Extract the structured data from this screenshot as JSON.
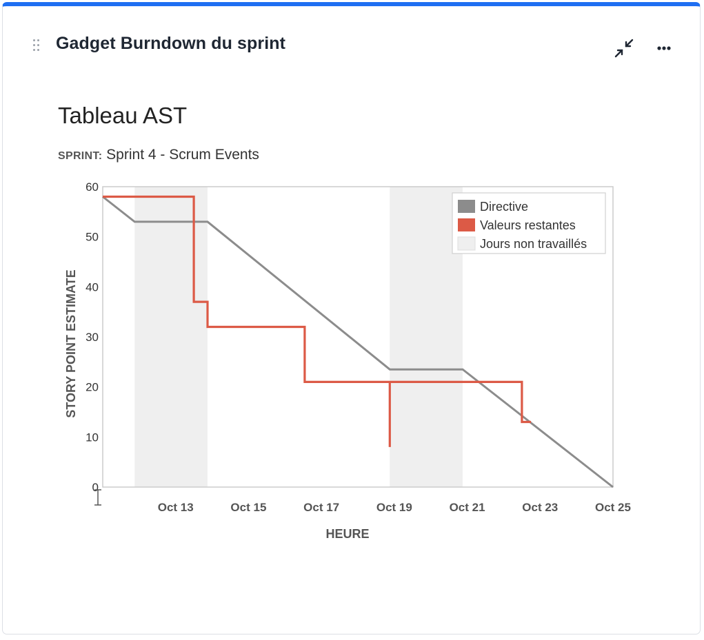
{
  "gadget": {
    "title": "Gadget Burndown du sprint",
    "icons": {
      "drag": "drag-handle-icon",
      "collapse": "collapse-arrows-icon",
      "more": "more-options-icon"
    },
    "accent_color": "#1f6ff2"
  },
  "board": {
    "title": "Tableau AST",
    "sprint_label": "SPRINT:",
    "sprint_value": "Sprint 4 - Scrum Events"
  },
  "chart_data": {
    "type": "line",
    "xlabel": "HEURE",
    "ylabel": "STORY POINT ESTIMATE",
    "ylim": [
      0,
      60
    ],
    "yticks": [
      0,
      10,
      20,
      30,
      40,
      50,
      60
    ],
    "xlim": [
      "Oct 11",
      "Oct 25"
    ],
    "xticks": [
      "Oct 13",
      "Oct 15",
      "Oct 17",
      "Oct 19",
      "Oct 21",
      "Oct 23",
      "Oct 25"
    ],
    "grid": false,
    "legend_position": "top-right",
    "legend": [
      "Directive",
      "Valeurs restantes",
      "Jours non travaillés"
    ],
    "series": [
      {
        "name": "Directive",
        "color": "#8c8c8c",
        "points": [
          {
            "x": "Oct 11 00:00",
            "y": 58
          },
          {
            "x": "Oct 11 21:00",
            "y": 53
          },
          {
            "x": "Oct 13 21:00",
            "y": 53
          },
          {
            "x": "Oct 18 21:00",
            "y": 23.5
          },
          {
            "x": "Oct 20 21:00",
            "y": 23.5
          },
          {
            "x": "Oct 25 00:00",
            "y": 0
          }
        ]
      },
      {
        "name": "Valeurs restantes",
        "color": "#dc5a46",
        "points": [
          {
            "x": "Oct 11 00:00",
            "y": 58
          },
          {
            "x": "Oct 13 12:00",
            "y": 58
          },
          {
            "x": "Oct 13 12:00",
            "y": 37
          },
          {
            "x": "Oct 13 21:00",
            "y": 37
          },
          {
            "x": "Oct 13 21:00",
            "y": 32
          },
          {
            "x": "Oct 16 13:00",
            "y": 32
          },
          {
            "x": "Oct 16 13:00",
            "y": 21
          },
          {
            "x": "Oct 18 21:00",
            "y": 21
          },
          {
            "x": "Oct 18 21:00",
            "y": 8
          },
          {
            "x": "Oct 18 21:00",
            "y": 21
          },
          {
            "x": "Oct 22 12:00",
            "y": 21
          },
          {
            "x": "Oct 22 12:00",
            "y": 13
          },
          {
            "x": "Oct 22 18:00",
            "y": 13
          }
        ]
      }
    ],
    "non_working_periods": [
      {
        "start": "Oct 11 21:00",
        "end": "Oct 13 21:00"
      },
      {
        "start": "Oct 18 21:00",
        "end": "Oct 20 21:00"
      }
    ],
    "colors": {
      "directive": "#8c8c8c",
      "remaining": "#dc5a46",
      "non_working": "#efefef"
    }
  }
}
